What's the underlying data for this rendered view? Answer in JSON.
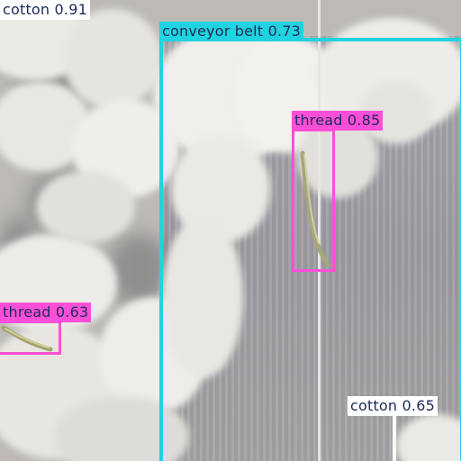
{
  "detections": [
    {
      "label": "cotton 0.91",
      "box_color": "#ffffff",
      "label_bg": "#ffffff",
      "text_color": "#1b2a57"
    },
    {
      "label": "conveyor belt 0.73",
      "box_color": "#1fd3e0",
      "label_bg": "#1fd3e0",
      "text_color": "#1b2a57"
    },
    {
      "label": "thread 0.85",
      "box_color": "#ff4fd8",
      "label_bg": "#ff4fd8",
      "text_color": "#1b2a57"
    },
    {
      "label": "thread 0.63",
      "box_color": "#ff4fd8",
      "label_bg": "#ff4fd8",
      "text_color": "#1b2a57"
    },
    {
      "label": "cotton 0.65",
      "box_color": "#ffffff",
      "label_bg": "#ffffff",
      "text_color": "#1b2a57"
    }
  ]
}
